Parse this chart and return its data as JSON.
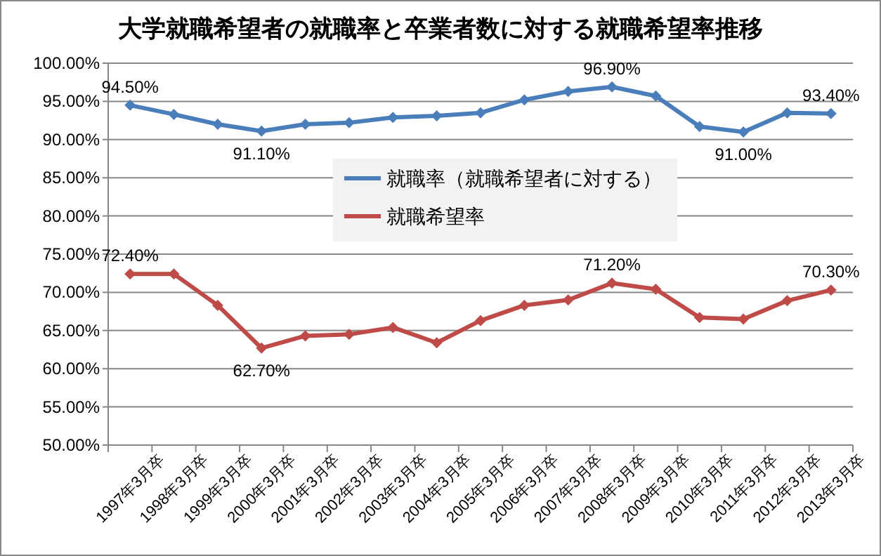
{
  "chart_data": {
    "type": "line",
    "title": "大学就職希望者の就職率と卒業者数に対する就職希望率推移",
    "categories": [
      "1997年3月卒",
      "1998年3月卒",
      "1999年3月卒",
      "2000年3月卒",
      "2001年3月卒",
      "2002年3月卒",
      "2003年3月卒",
      "2004年3月卒",
      "2005年3月卒",
      "2006年3月卒",
      "2007年3月卒",
      "2008年3月卒",
      "2009年3月卒",
      "2010年3月卒",
      "2011年3月卒",
      "2012年3月卒",
      "2013年3月卒"
    ],
    "series": [
      {
        "name": "就職率（就職希望者に対する）",
        "color": "#4a7ebb",
        "values": [
          94.5,
          93.3,
          92.0,
          91.1,
          92.0,
          92.2,
          92.9,
          93.1,
          93.5,
          95.2,
          96.3,
          96.9,
          95.7,
          91.7,
          91.0,
          93.5,
          93.4
        ],
        "value_labels": [
          "94.50%",
          null,
          null,
          "91.10%",
          null,
          null,
          null,
          null,
          null,
          null,
          null,
          "96.90%",
          null,
          null,
          "91.00%",
          null,
          "93.40%"
        ]
      },
      {
        "name": "就職希望率",
        "color": "#be4b48",
        "values": [
          72.4,
          72.4,
          68.3,
          62.7,
          64.3,
          64.5,
          65.4,
          63.4,
          66.3,
          68.3,
          69.0,
          71.2,
          70.4,
          66.7,
          66.5,
          68.9,
          70.3
        ],
        "value_labels": [
          "72.40%",
          null,
          null,
          "62.70%",
          null,
          null,
          null,
          null,
          null,
          null,
          null,
          "71.20%",
          null,
          null,
          null,
          null,
          "70.30%"
        ]
      }
    ],
    "ylim": [
      50,
      100
    ],
    "yticks": [
      {
        "value": 50,
        "label": "50.00%"
      },
      {
        "value": 55,
        "label": "55.00%"
      },
      {
        "value": 60,
        "label": "60.00%"
      },
      {
        "value": 65,
        "label": "65.00%"
      },
      {
        "value": 70,
        "label": "70.00%"
      },
      {
        "value": 75,
        "label": "75.00%"
      },
      {
        "value": 80,
        "label": "80.00%"
      },
      {
        "value": 85,
        "label": "85.00%"
      },
      {
        "value": 90,
        "label": "90.00%"
      },
      {
        "value": 95,
        "label": "95.00%"
      },
      {
        "value": 100,
        "label": "100.00%"
      }
    ],
    "grid": "y",
    "legend": "center",
    "marker": "diamond",
    "line_style": "solid"
  }
}
